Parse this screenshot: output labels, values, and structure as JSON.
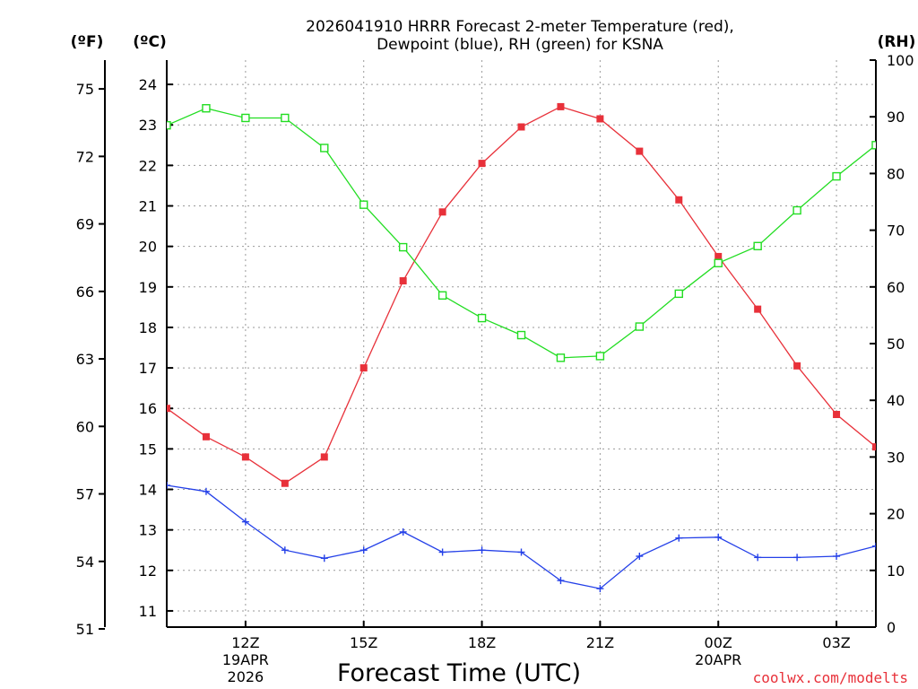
{
  "chart_data": {
    "type": "line",
    "title_line1": "2026041910 HRRR Forecast 2-meter Temperature (red),",
    "title_line2": "Dewpoint (blue), RH (green) for KSNA",
    "xlabel": "Forecast Time (UTC)",
    "credit": "coolwx.com/modelts",
    "units": {
      "f": "(ºF)",
      "c": "(ºC)",
      "rh": "(RH)"
    },
    "x": [
      10,
      11,
      12,
      13,
      14,
      15,
      16,
      17,
      18,
      19,
      20,
      21,
      22,
      23,
      24,
      25,
      26,
      27,
      28
    ],
    "xlim": [
      10,
      28
    ],
    "x_ticks": [
      {
        "x": 12,
        "label": "12Z",
        "sub1": "19APR",
        "sub2": "2026"
      },
      {
        "x": 15,
        "label": "15Z",
        "sub1": "",
        "sub2": ""
      },
      {
        "x": 18,
        "label": "18Z",
        "sub1": "",
        "sub2": ""
      },
      {
        "x": 21,
        "label": "21Z",
        "sub1": "",
        "sub2": ""
      },
      {
        "x": 24,
        "label": "00Z",
        "sub1": "20APR",
        "sub2": ""
      },
      {
        "x": 27,
        "label": "03Z",
        "sub1": "",
        "sub2": ""
      }
    ],
    "c_axis": {
      "range": [
        10.6,
        24.6
      ],
      "ticks": [
        11,
        12,
        13,
        14,
        15,
        16,
        17,
        18,
        19,
        20,
        21,
        22,
        23,
        24
      ]
    },
    "f_axis": {
      "ticks": [
        51,
        54,
        57,
        60,
        63,
        66,
        69,
        72,
        75
      ]
    },
    "rh_axis": {
      "range": [
        0,
        100
      ],
      "ticks": [
        0,
        10,
        20,
        30,
        40,
        50,
        60,
        70,
        80,
        90,
        100
      ]
    },
    "series": [
      {
        "name": "Temperature",
        "axis": "c",
        "color": "#e8313a",
        "marker": "filled-square",
        "values": [
          16.0,
          15.3,
          14.8,
          14.15,
          14.8,
          17.0,
          19.15,
          20.85,
          22.05,
          22.95,
          23.45,
          23.15,
          22.35,
          21.15,
          19.75,
          18.45,
          17.05,
          15.85,
          15.05
        ]
      },
      {
        "name": "Dewpoint",
        "axis": "c",
        "color": "#2440e8",
        "marker": "plus",
        "values": [
          14.1,
          13.95,
          13.2,
          12.5,
          12.3,
          12.5,
          12.95,
          12.45,
          12.5,
          12.45,
          11.75,
          11.55,
          12.35,
          12.8,
          12.82,
          12.32,
          12.32,
          12.35,
          12.6
        ]
      },
      {
        "name": "Relative Humidity",
        "axis": "rh",
        "color": "#22dd22",
        "marker": "open-square",
        "values": [
          88.5,
          91.5,
          89.8,
          89.8,
          84.5,
          74.5,
          67.0,
          58.5,
          54.5,
          51.5,
          47.5,
          47.8,
          53.0,
          58.8,
          64.2,
          67.2,
          73.5,
          79.5,
          85.0
        ]
      }
    ]
  }
}
